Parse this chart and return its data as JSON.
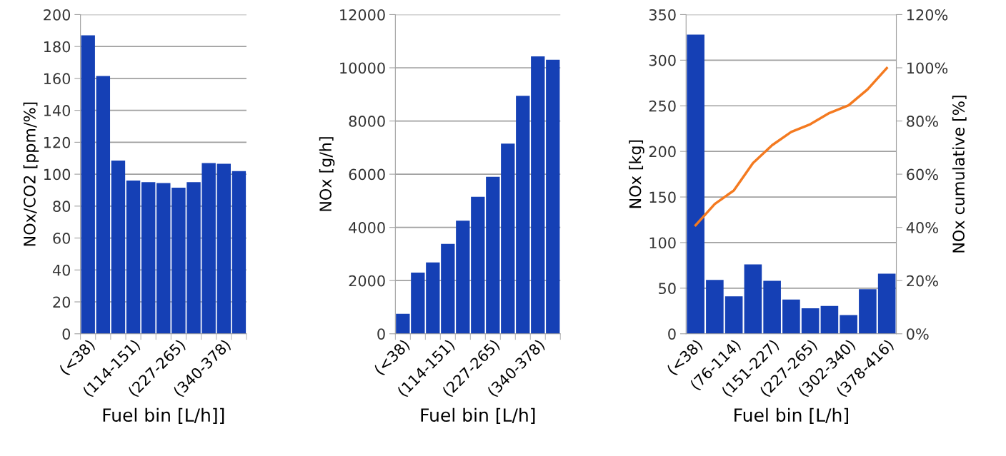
{
  "chart_data": [
    {
      "type": "bar",
      "xlabel": "Fuel bin [L/h]]",
      "ylabel": "NOx/CO2 [ppm/%]",
      "categories": [
        "(<38)",
        null,
        null,
        "(114-151)",
        null,
        null,
        "(227-265)",
        null,
        null,
        "(340-378)",
        null
      ],
      "series": [
        {
          "color": "#1540b5",
          "values": [
            187,
            161.5,
            108.5,
            96,
            95,
            94.5,
            91.5,
            95,
            107,
            106.5,
            102
          ]
        }
      ],
      "ylim": [
        0,
        200
      ],
      "yticks": [
        0,
        20,
        40,
        60,
        80,
        100,
        120,
        140,
        160,
        180,
        200
      ],
      "grid": "y"
    },
    {
      "type": "bar",
      "xlabel": "Fuel bin [L/h]",
      "ylabel": "NOx [g/h]",
      "categories": [
        "(<38)",
        null,
        null,
        "(114-151)",
        null,
        null,
        "(227-265)",
        null,
        null,
        "(340-378)",
        null
      ],
      "series": [
        {
          "color": "#1540b5",
          "values": [
            750,
            2300,
            2680,
            3380,
            4250,
            5150,
            5900,
            7150,
            8950,
            10430,
            10300
          ]
        }
      ],
      "ylim": [
        0,
        12000
      ],
      "yticks": [
        0,
        2000,
        4000,
        6000,
        8000,
        10000,
        12000
      ],
      "grid": "y"
    },
    {
      "type": "bar",
      "xlabel": "Fuel bin [L/h]",
      "ylabel": "NOx [kg]",
      "y2label": "NOx cumulative [%]",
      "categories": [
        "(<38)",
        null,
        "(76-114)",
        null,
        "(151-227)",
        null,
        "(227-265)",
        null,
        "(302-340)",
        null,
        "(378-416)"
      ],
      "series": [
        {
          "color": "#1540b5",
          "values": [
            328,
            59,
            41,
            76,
            58,
            37.5,
            28,
            30.5,
            20.5,
            49,
            66
          ]
        },
        {
          "type": "line",
          "axis": "y2",
          "color": "#f47a20",
          "values": [
            40.8,
            48.8,
            53.9,
            64.2,
            70.9,
            75.9,
            78.8,
            83.0,
            85.9,
            91.9,
            99.9
          ]
        }
      ],
      "ylim": [
        0,
        350
      ],
      "yticks": [
        0,
        50,
        100,
        150,
        200,
        250,
        300,
        350
      ],
      "y2lim": [
        0,
        120
      ],
      "y2ticks": [
        {
          "value": 0,
          "label": "0%"
        },
        {
          "value": 20,
          "label": "20%"
        },
        {
          "value": 40,
          "label": "40%"
        },
        {
          "value": 60,
          "label": "60%"
        },
        {
          "value": 80,
          "label": "80%"
        },
        {
          "value": 100,
          "label": "100%"
        },
        {
          "value": 120,
          "label": "120%"
        }
      ],
      "grid": "y"
    }
  ]
}
